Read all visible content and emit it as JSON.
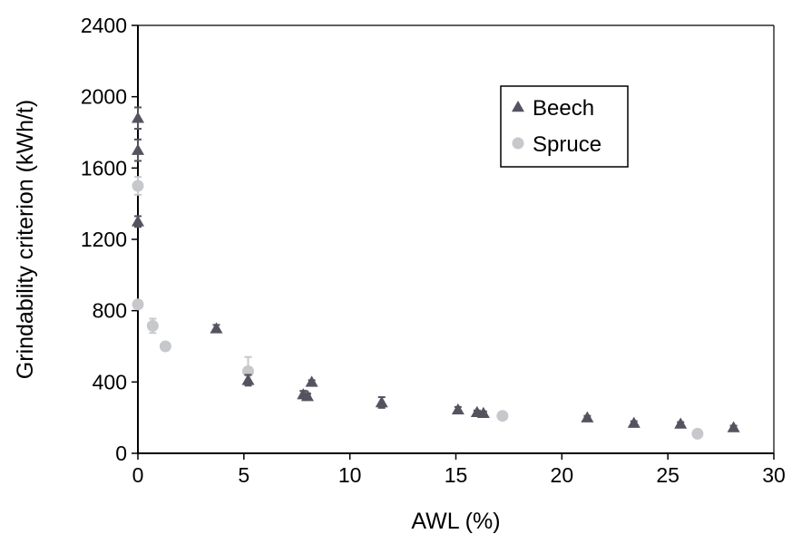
{
  "chart_data": {
    "type": "scatter",
    "xlabel": "AWL (%)",
    "ylabel": "Grindability criterion (kWh/t)",
    "xlim": [
      0,
      30
    ],
    "ylim": [
      0,
      2400
    ],
    "xticks": [
      "0",
      "5",
      "10",
      "15",
      "20",
      "25",
      "30"
    ],
    "yticks": [
      "0",
      "400",
      "800",
      "1200",
      "1600",
      "2000",
      "2400"
    ],
    "grid": false,
    "legend_position": "top-right",
    "series": [
      {
        "name": "Beech",
        "marker": "triangle",
        "color": "#55535f",
        "points": [
          {
            "x": 0,
            "y": 1880,
            "err": 60
          },
          {
            "x": 0,
            "y": 1700,
            "err": 60
          },
          {
            "x": 0,
            "y": 1300,
            "err": 30
          },
          {
            "x": 3.7,
            "y": 700,
            "err": 20
          },
          {
            "x": 5.2,
            "y": 410,
            "err": 30
          },
          {
            "x": 7.8,
            "y": 330,
            "err": 20
          },
          {
            "x": 8.0,
            "y": 320,
            "err": 15
          },
          {
            "x": 8.2,
            "y": 400,
            "err": 10
          },
          {
            "x": 11.5,
            "y": 285,
            "err": 30
          },
          {
            "x": 15.1,
            "y": 245,
            "err": 15
          },
          {
            "x": 16.0,
            "y": 230,
            "err": 10
          },
          {
            "x": 16.3,
            "y": 225,
            "err": 10
          },
          {
            "x": 21.2,
            "y": 200,
            "err": 10
          },
          {
            "x": 23.4,
            "y": 170,
            "err": 10
          },
          {
            "x": 25.6,
            "y": 165,
            "err": 10
          },
          {
            "x": 28.1,
            "y": 145,
            "err": 10
          }
        ]
      },
      {
        "name": "Spruce",
        "marker": "circle",
        "color": "#c6c8cb",
        "points": [
          {
            "x": 0,
            "y": 1500,
            "err": 50
          },
          {
            "x": 0,
            "y": 835,
            "err": 0
          },
          {
            "x": 0.7,
            "y": 715,
            "err": 40
          },
          {
            "x": 1.3,
            "y": 600,
            "err": 15
          },
          {
            "x": 5.2,
            "y": 460,
            "err": 80
          },
          {
            "x": 7.9,
            "y": 325,
            "err": 15
          },
          {
            "x": 17.2,
            "y": 210,
            "err": 10
          },
          {
            "x": 26.4,
            "y": 110,
            "err": 10
          }
        ]
      }
    ]
  }
}
